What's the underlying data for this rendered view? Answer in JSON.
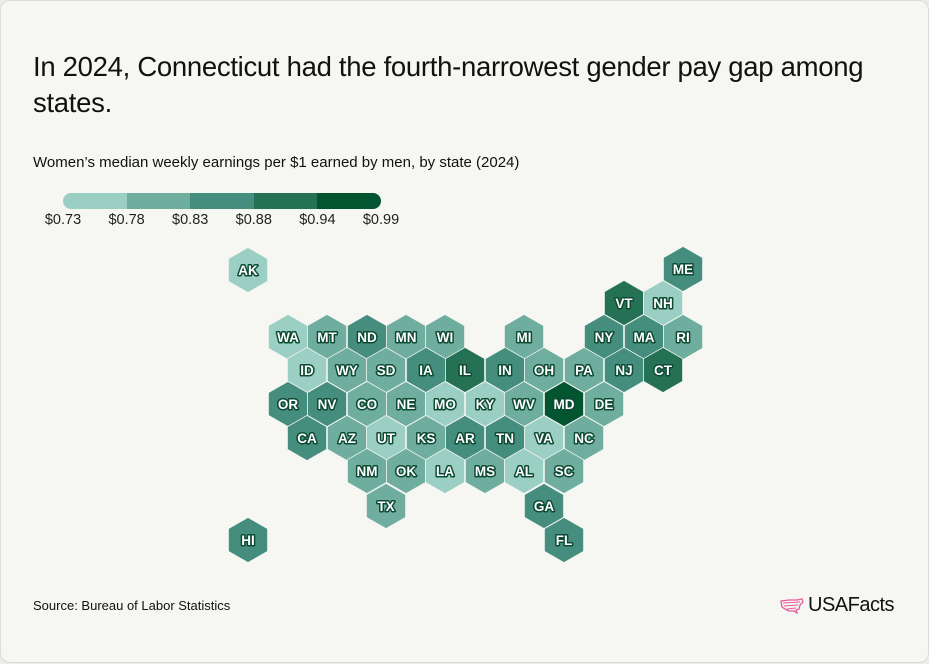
{
  "title": "In 2024, Connecticut had the fourth-narrowest gender pay gap among states.",
  "subtitle": "Women’s median weekly earnings per $1 earned by men, by state (2024)",
  "source": "Source: Bureau of Labor Statistics",
  "logo": "USAFacts",
  "colors": {
    "background": "#f6f6f2",
    "logo_accent": "#e85a9b"
  },
  "chart_data": {
    "type": "heatmap",
    "map_style": "hexagon tile map",
    "legend": {
      "placement": "top-left",
      "ticks": [
        "$0.73",
        "$0.78",
        "$0.83",
        "$0.88",
        "$0.94",
        "$0.99"
      ],
      "bins": [
        {
          "range": [
            0.73,
            0.78
          ],
          "color": "#9ccfc3"
        },
        {
          "range": [
            0.78,
            0.83
          ],
          "color": "#6fae9f"
        },
        {
          "range": [
            0.83,
            0.88
          ],
          "color": "#458e7e"
        },
        {
          "range": [
            0.88,
            0.94
          ],
          "color": "#247155"
        },
        {
          "range": [
            0.94,
            0.99
          ],
          "color": "#02552f"
        }
      ]
    },
    "states": [
      {
        "state": "AK",
        "bin": [
          0.73,
          0.78
        ]
      },
      {
        "state": "ME",
        "bin": [
          0.83,
          0.88
        ]
      },
      {
        "state": "VT",
        "bin": [
          0.88,
          0.94
        ]
      },
      {
        "state": "NH",
        "bin": [
          0.73,
          0.78
        ]
      },
      {
        "state": "WA",
        "bin": [
          0.73,
          0.78
        ]
      },
      {
        "state": "MT",
        "bin": [
          0.78,
          0.83
        ]
      },
      {
        "state": "ND",
        "bin": [
          0.83,
          0.88
        ]
      },
      {
        "state": "MN",
        "bin": [
          0.78,
          0.83
        ]
      },
      {
        "state": "WI",
        "bin": [
          0.78,
          0.83
        ]
      },
      {
        "state": "MI",
        "bin": [
          0.78,
          0.83
        ]
      },
      {
        "state": "NY",
        "bin": [
          0.83,
          0.88
        ]
      },
      {
        "state": "MA",
        "bin": [
          0.83,
          0.88
        ]
      },
      {
        "state": "RI",
        "bin": [
          0.78,
          0.83
        ]
      },
      {
        "state": "ID",
        "bin": [
          0.73,
          0.78
        ]
      },
      {
        "state": "WY",
        "bin": [
          0.78,
          0.83
        ]
      },
      {
        "state": "SD",
        "bin": [
          0.78,
          0.83
        ]
      },
      {
        "state": "IA",
        "bin": [
          0.83,
          0.88
        ]
      },
      {
        "state": "IL",
        "bin": [
          0.88,
          0.94
        ]
      },
      {
        "state": "IN",
        "bin": [
          0.83,
          0.88
        ]
      },
      {
        "state": "OH",
        "bin": [
          0.78,
          0.83
        ]
      },
      {
        "state": "PA",
        "bin": [
          0.78,
          0.83
        ]
      },
      {
        "state": "NJ",
        "bin": [
          0.83,
          0.88
        ]
      },
      {
        "state": "CT",
        "bin": [
          0.88,
          0.94
        ]
      },
      {
        "state": "OR",
        "bin": [
          0.83,
          0.88
        ]
      },
      {
        "state": "NV",
        "bin": [
          0.83,
          0.88
        ]
      },
      {
        "state": "CO",
        "bin": [
          0.78,
          0.83
        ]
      },
      {
        "state": "NE",
        "bin": [
          0.78,
          0.83
        ]
      },
      {
        "state": "MO",
        "bin": [
          0.73,
          0.78
        ]
      },
      {
        "state": "KY",
        "bin": [
          0.73,
          0.78
        ]
      },
      {
        "state": "WV",
        "bin": [
          0.78,
          0.83
        ]
      },
      {
        "state": "MD",
        "bin": [
          0.94,
          0.99
        ]
      },
      {
        "state": "DE",
        "bin": [
          0.78,
          0.83
        ]
      },
      {
        "state": "CA",
        "bin": [
          0.83,
          0.88
        ]
      },
      {
        "state": "AZ",
        "bin": [
          0.78,
          0.83
        ]
      },
      {
        "state": "UT",
        "bin": [
          0.73,
          0.78
        ]
      },
      {
        "state": "KS",
        "bin": [
          0.78,
          0.83
        ]
      },
      {
        "state": "AR",
        "bin": [
          0.83,
          0.88
        ]
      },
      {
        "state": "TN",
        "bin": [
          0.83,
          0.88
        ]
      },
      {
        "state": "VA",
        "bin": [
          0.73,
          0.78
        ]
      },
      {
        "state": "NC",
        "bin": [
          0.78,
          0.83
        ]
      },
      {
        "state": "NM",
        "bin": [
          0.78,
          0.83
        ]
      },
      {
        "state": "OK",
        "bin": [
          0.78,
          0.83
        ]
      },
      {
        "state": "LA",
        "bin": [
          0.73,
          0.78
        ]
      },
      {
        "state": "MS",
        "bin": [
          0.78,
          0.83
        ]
      },
      {
        "state": "AL",
        "bin": [
          0.73,
          0.78
        ]
      },
      {
        "state": "SC",
        "bin": [
          0.78,
          0.83
        ]
      },
      {
        "state": "TX",
        "bin": [
          0.78,
          0.83
        ]
      },
      {
        "state": "GA",
        "bin": [
          0.83,
          0.88
        ]
      },
      {
        "state": "HI",
        "bin": [
          0.83,
          0.88
        ]
      },
      {
        "state": "FL",
        "bin": [
          0.83,
          0.88
        ]
      }
    ]
  }
}
